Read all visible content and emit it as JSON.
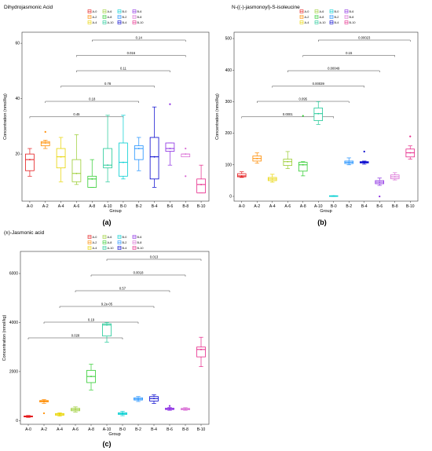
{
  "figure": {
    "panels": [
      {
        "id": "a",
        "label": "(a)"
      },
      {
        "id": "b",
        "label": "(b)"
      },
      {
        "id": "c",
        "label": "(c)"
      }
    ]
  },
  "chart_data": [
    {
      "type": "box",
      "title": "Dihydrojasmonic Acid",
      "xlabel": "Group",
      "ylabel": "Concentration (nmol/kg)",
      "p_value": "P: 0.04(Anova)",
      "ylim": [
        3,
        64
      ],
      "yticks": [
        20,
        40,
        60
      ],
      "categories": [
        "A-0",
        "A-2",
        "A-4",
        "A-6",
        "A-8",
        "A-10",
        "B-0",
        "B-2",
        "B-4",
        "B-6",
        "B-8",
        "B-10"
      ],
      "x_ticks_shown": [
        "A-0",
        "A-2",
        "A-4",
        "A-6",
        "A-8",
        "A-10",
        "B-0",
        "B-2",
        "B-4",
        "B-6",
        "B-8",
        "B-10"
      ],
      "legend": [
        "A-0",
        "A-6",
        "B-0",
        "B-6",
        "A-2",
        "A-8",
        "B-2",
        "B-8",
        "A-4",
        "A-10",
        "B-4",
        "B-10"
      ],
      "boxes": [
        {
          "group": "A-0",
          "min": 12,
          "q1": 14,
          "median": 18,
          "q3": 20,
          "max": 22
        },
        {
          "group": "A-2",
          "min": 22,
          "q1": 23,
          "median": 24,
          "q3": 24.5,
          "max": 25,
          "outliers": [
            28
          ]
        },
        {
          "group": "A-4",
          "min": 10,
          "q1": 15,
          "median": 19,
          "q3": 22,
          "max": 26
        },
        {
          "group": "A-6",
          "min": 9,
          "q1": 10,
          "median": 13,
          "q3": 18,
          "max": 27
        },
        {
          "group": "A-8",
          "min": 8,
          "q1": 8,
          "median": 11,
          "q3": 12,
          "max": 18
        },
        {
          "group": "A-10",
          "min": 10,
          "q1": 15,
          "median": 16,
          "q3": 22,
          "max": 34
        },
        {
          "group": "B-0",
          "min": 11,
          "q1": 12,
          "median": 17,
          "q3": 24,
          "max": 34
        },
        {
          "group": "B-2",
          "min": 14,
          "q1": 18,
          "median": 22,
          "q3": 23,
          "max": 26
        },
        {
          "group": "B-4",
          "min": 8,
          "q1": 11,
          "median": 19,
          "q3": 26,
          "max": 37
        },
        {
          "group": "B-6",
          "min": 16,
          "q1": 21,
          "median": 22,
          "q3": 24,
          "max": 24,
          "outliers": [
            38
          ]
        },
        {
          "group": "B-8",
          "min": 19,
          "q1": 19,
          "median": 20,
          "q3": 20,
          "max": 20,
          "outliers": [
            12,
            22
          ]
        },
        {
          "group": "B-10",
          "min": 6,
          "q1": 6,
          "median": 9,
          "q3": 11,
          "max": 16
        }
      ],
      "comparisons": [
        {
          "from": "A-8",
          "to": "B-8",
          "label": "0.14"
        },
        {
          "from": "A-6",
          "to": "B-8",
          "label": "0.016"
        },
        {
          "from": "A-6",
          "to": "B-6",
          "label": "0.11"
        },
        {
          "from": "A-4",
          "to": "B-4",
          "label": "0.78"
        },
        {
          "from": "A-2",
          "to": "B-2",
          "label": "0.18"
        },
        {
          "from": "A-0",
          "to": "B-0",
          "label": "0.45"
        }
      ],
      "colors": [
        "#e41a1c",
        "#ff8c00",
        "#e8d400",
        "#9acd32",
        "#32cd32",
        "#20c997",
        "#00ced1",
        "#1e90ff",
        "#0000cd",
        "#8a2be2",
        "#da70d6",
        "#e7298a"
      ]
    },
    {
      "type": "box",
      "title": "N-((-)-jasmonoyl)-S-isoleucine",
      "xlabel": "Group",
      "ylabel": "Concentration (nmol/kg)",
      "p_value": "P: <2e-16(Anova)",
      "ylim": [
        -15,
        520
      ],
      "yticks": [
        0,
        100,
        200,
        300,
        400,
        500
      ],
      "categories": [
        "A-0",
        "A-2",
        "A-4",
        "A-6",
        "A-8",
        "A-10",
        "B-0",
        "B-2",
        "B-4",
        "B-6",
        "B-8",
        "B-10"
      ],
      "x_ticks_shown": [
        "A-0",
        "A-2",
        "A-4",
        "A-6",
        "A-8",
        "A-10",
        "B-0",
        "B-2",
        "B-4",
        "B-6",
        "B-8",
        "B-10"
      ],
      "legend": [
        "A-0",
        "A-6",
        "B-0",
        "B-6",
        "A-2",
        "A-8",
        "B-2",
        "B-8",
        "A-4",
        "A-10",
        "B-4",
        "B-10"
      ],
      "boxes": [
        {
          "group": "A-0",
          "min": 60,
          "q1": 62,
          "median": 65,
          "q3": 72,
          "max": 78
        },
        {
          "group": "A-2",
          "min": 105,
          "q1": 112,
          "median": 120,
          "q3": 128,
          "max": 138
        },
        {
          "group": "A-4",
          "min": 45,
          "q1": 50,
          "median": 55,
          "q3": 60,
          "max": 70
        },
        {
          "group": "A-6",
          "min": 88,
          "q1": 98,
          "median": 110,
          "q3": 118,
          "max": 142
        },
        {
          "group": "A-8",
          "min": 65,
          "q1": 80,
          "median": 100,
          "q3": 108,
          "max": 110,
          "outliers": [
            255
          ]
        },
        {
          "group": "A-10",
          "min": 228,
          "q1": 240,
          "median": 262,
          "q3": 280,
          "max": 300
        },
        {
          "group": "B-0",
          "min": 0,
          "q1": 0,
          "median": 1,
          "q3": 2,
          "max": 2
        },
        {
          "group": "B-2",
          "min": 100,
          "q1": 104,
          "median": 108,
          "q3": 112,
          "max": 122
        },
        {
          "group": "B-4",
          "min": 102,
          "q1": 106,
          "median": 108,
          "q3": 110,
          "max": 112,
          "outliers": [
            142
          ]
        },
        {
          "group": "B-6",
          "min": 35,
          "q1": 40,
          "median": 45,
          "q3": 50,
          "max": 58,
          "outliers": [
            0
          ]
        },
        {
          "group": "B-8",
          "min": 52,
          "q1": 56,
          "median": 62,
          "q3": 68,
          "max": 75
        },
        {
          "group": "B-10",
          "min": 118,
          "q1": 125,
          "median": 138,
          "q3": 150,
          "max": 160,
          "outliers": [
            190
          ]
        }
      ],
      "comparisons": [
        {
          "from": "A-10",
          "to": "B-10",
          "label": "0.00023"
        },
        {
          "from": "A-8",
          "to": "B-8",
          "label": "0.15"
        },
        {
          "from": "A-6",
          "to": "B-6",
          "label": "0.00049"
        },
        {
          "from": "A-4",
          "to": "B-4",
          "label": "0.00039"
        },
        {
          "from": "A-2",
          "to": "B-2",
          "label": "0.095"
        },
        {
          "from": "A-0",
          "to": "B-0",
          "label": "0.0001"
        }
      ],
      "colors": [
        "#e41a1c",
        "#ff8c00",
        "#e8d400",
        "#9acd32",
        "#32cd32",
        "#20c997",
        "#00ced1",
        "#1e90ff",
        "#0000cd",
        "#8a2be2",
        "#da70d6",
        "#e7298a"
      ]
    },
    {
      "type": "box",
      "title": "(±)-Jasmonic acid",
      "xlabel": "Group",
      "ylabel": "Concentration (nmol/kg)",
      "p_value": "P: <2e-16(Anova)",
      "ylim": [
        -150,
        6900
      ],
      "yticks": [
        0,
        2000,
        4000,
        6000
      ],
      "categories": [
        "A-0",
        "A-2",
        "A-4",
        "A-6",
        "A-8",
        "A-10",
        "B-0",
        "B-2",
        "B-4",
        "B-6",
        "B-8",
        "B-10"
      ],
      "x_ticks_shown": [
        "A-0",
        "A-2",
        "A-4",
        "A-6",
        "A-8",
        "A-10",
        "B-0",
        "B-2",
        "B-4",
        "B-6",
        "B-8",
        "B-10"
      ],
      "legend": [
        "A-0",
        "A-6",
        "B-0",
        "B-6",
        "A-2",
        "A-8",
        "B-2",
        "B-8",
        "A-4",
        "A-10",
        "B-4",
        "B-10"
      ],
      "boxes": [
        {
          "group": "A-0",
          "min": 130,
          "q1": 150,
          "median": 170,
          "q3": 190,
          "max": 210
        },
        {
          "group": "A-2",
          "min": 700,
          "q1": 760,
          "median": 790,
          "q3": 820,
          "max": 860,
          "outliers": [
            300
          ]
        },
        {
          "group": "A-4",
          "min": 180,
          "q1": 220,
          "median": 260,
          "q3": 290,
          "max": 320
        },
        {
          "group": "A-6",
          "min": 350,
          "q1": 400,
          "median": 450,
          "q3": 500,
          "max": 560
        },
        {
          "group": "A-8",
          "min": 1250,
          "q1": 1550,
          "median": 1800,
          "q3": 2050,
          "max": 2300
        },
        {
          "group": "A-10",
          "min": 3200,
          "q1": 3450,
          "median": 3900,
          "q3": 3950,
          "max": 4000
        },
        {
          "group": "B-0",
          "min": 200,
          "q1": 250,
          "median": 290,
          "q3": 320,
          "max": 380
        },
        {
          "group": "B-2",
          "min": 780,
          "q1": 840,
          "median": 880,
          "q3": 930,
          "max": 980
        },
        {
          "group": "B-4",
          "min": 700,
          "q1": 800,
          "median": 900,
          "q3": 980,
          "max": 1050
        },
        {
          "group": "B-6",
          "min": 420,
          "q1": 450,
          "median": 480,
          "q3": 510,
          "max": 540,
          "outliers": [
            600
          ]
        },
        {
          "group": "B-8",
          "min": 420,
          "q1": 440,
          "median": 470,
          "q3": 500,
          "max": 530
        },
        {
          "group": "B-10",
          "min": 2200,
          "q1": 2600,
          "median": 2900,
          "q3": 3000,
          "max": 3400
        }
      ],
      "comparisons": [
        {
          "from": "A-10",
          "to": "B-10",
          "label": "0.013"
        },
        {
          "from": "A-8",
          "to": "B-8",
          "label": "0.0018"
        },
        {
          "from": "A-6",
          "to": "B-6",
          "label": "0.57"
        },
        {
          "from": "A-4",
          "to": "B-4",
          "label": "9.2e-05"
        },
        {
          "from": "A-2",
          "to": "B-2",
          "label": "0.19"
        },
        {
          "from": "A-0",
          "to": "B-0",
          "label": "0.028"
        }
      ],
      "colors": [
        "#e41a1c",
        "#ff8c00",
        "#e8d400",
        "#9acd32",
        "#32cd32",
        "#20c997",
        "#00ced1",
        "#1e90ff",
        "#0000cd",
        "#8a2be2",
        "#da70d6",
        "#e7298a"
      ]
    }
  ]
}
